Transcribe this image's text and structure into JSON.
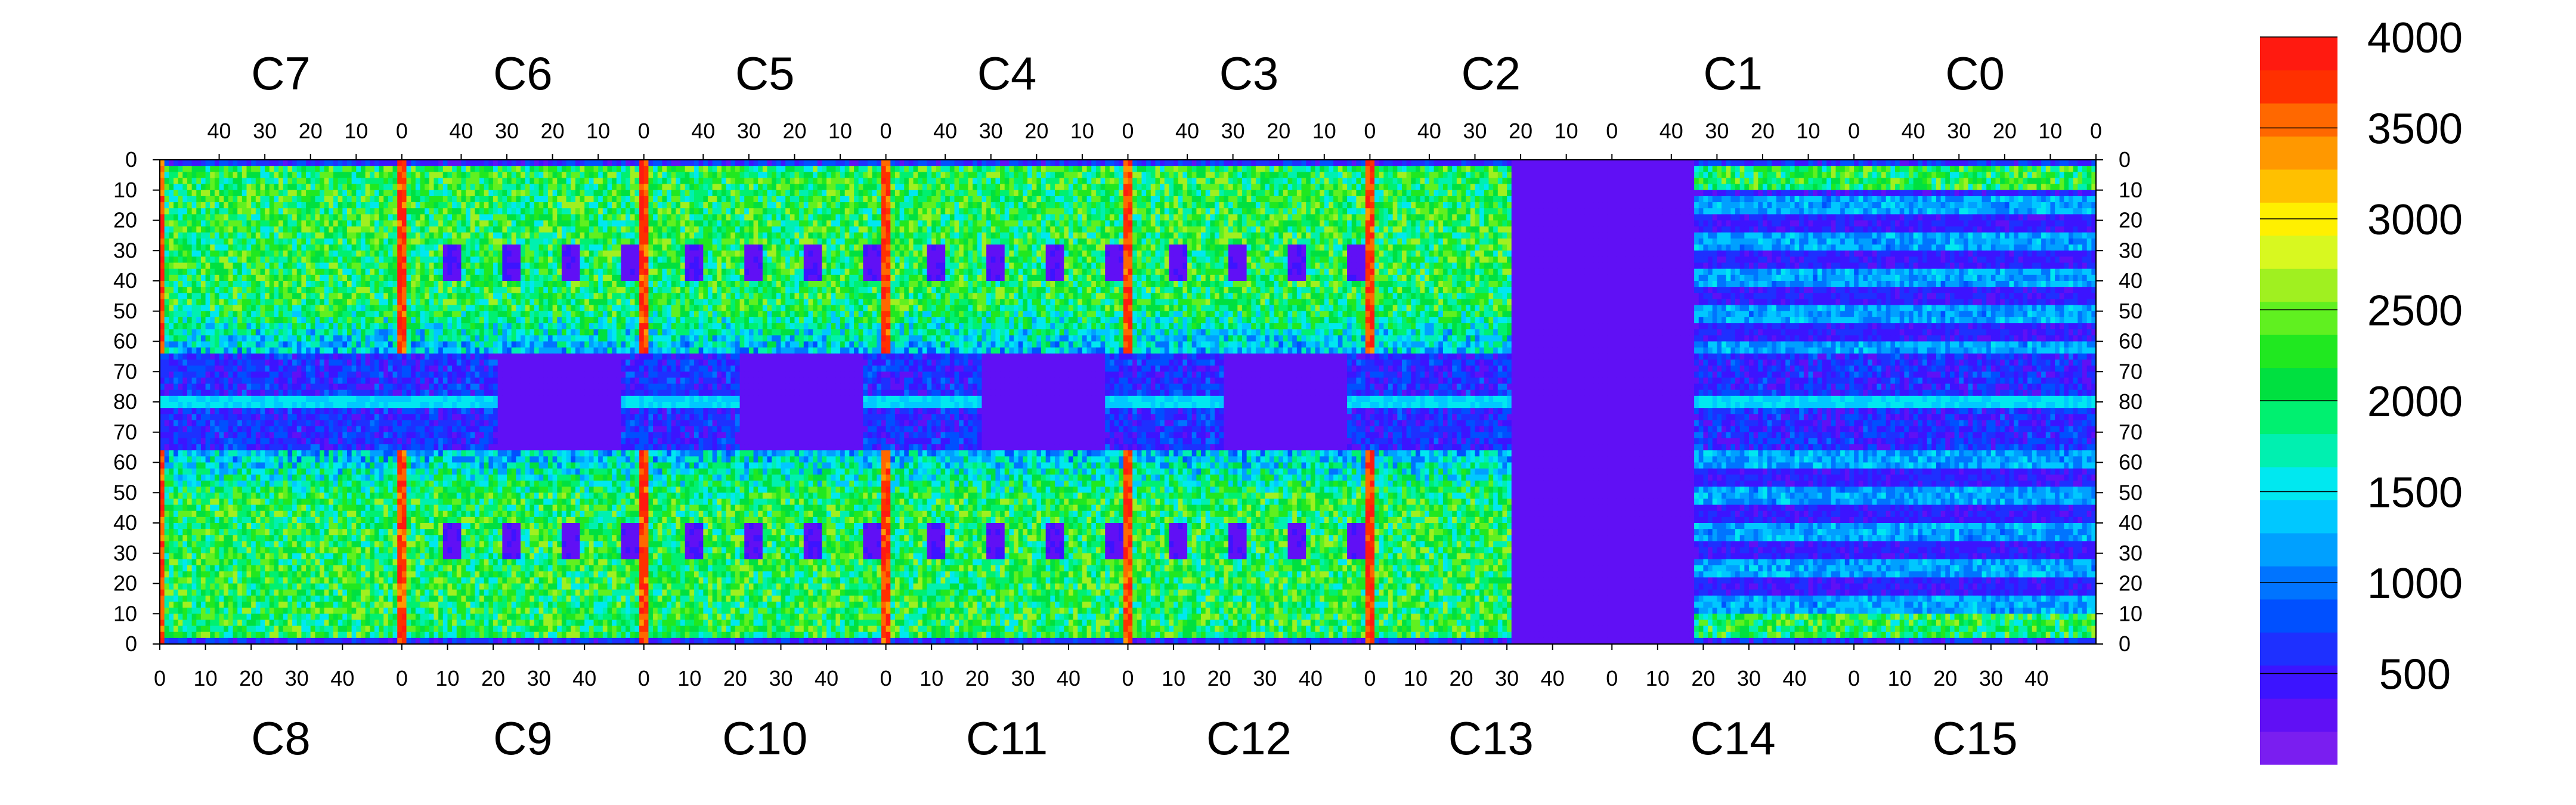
{
  "chart_data": {
    "type": "heatmap",
    "title": "",
    "xlabel": "",
    "ylabel": "",
    "top_chips": [
      "C7",
      "C6",
      "C5",
      "C4",
      "C3",
      "C2",
      "C1",
      "C0"
    ],
    "bottom_chips": [
      "C8",
      "C9",
      "C10",
      "C11",
      "C12",
      "C13",
      "C14",
      "C15"
    ],
    "top_x_ticks": [
      "40",
      "30",
      "20",
      "10",
      "0"
    ],
    "bottom_x_ticks": [
      "0",
      "10",
      "20",
      "30",
      "40"
    ],
    "y_ticks": [
      "0",
      "10",
      "20",
      "30",
      "40",
      "50",
      "60",
      "70",
      "80",
      "70",
      "60",
      "50",
      "40",
      "30",
      "20",
      "10",
      "0"
    ],
    "colorbar": {
      "range": [
        0,
        4000
      ],
      "tick_values": [
        500,
        1000,
        1500,
        2000,
        2500,
        3000,
        3500,
        4000
      ],
      "tick_labels": [
        "500",
        "1000",
        "1500",
        "2000",
        "2500",
        "3000",
        "3500",
        "4000"
      ],
      "colors": [
        "#7a1ef0",
        "#6010f5",
        "#3c14ff",
        "#1e30ff",
        "#0050ff",
        "#0074ff",
        "#00a0ff",
        "#00c8ff",
        "#00e8f0",
        "#00f0b0",
        "#00f070",
        "#00e040",
        "#20e820",
        "#60f020",
        "#a0f020",
        "#d8f820",
        "#fff000",
        "#ffc000",
        "#ff9800",
        "#ff6800",
        "#ff3000",
        "#ff1a10"
      ]
    },
    "grid": false,
    "legend": "colorbar-right"
  }
}
